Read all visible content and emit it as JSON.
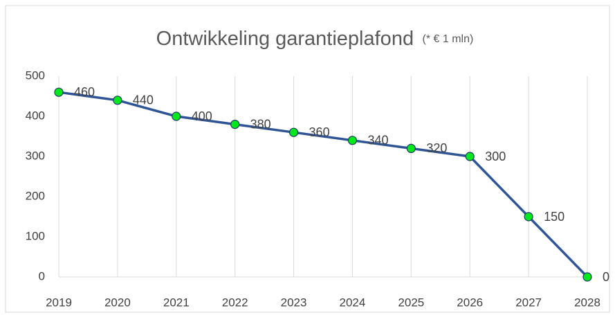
{
  "chart_data": {
    "type": "line",
    "title": "Ontwikkeling garantieplafond",
    "subtitle": "(* € 1 mln)",
    "categories": [
      "2019",
      "2020",
      "2021",
      "2022",
      "2023",
      "2024",
      "2025",
      "2026",
      "2027",
      "2028"
    ],
    "values": [
      460,
      440,
      400,
      380,
      360,
      340,
      320,
      300,
      150,
      0
    ],
    "color": "#2f5597",
    "marker_color": "#00e81c",
    "ylim": [
      0,
      500
    ],
    "yticks": [
      0,
      100,
      200,
      300,
      400,
      500
    ],
    "xgrid": true
  }
}
